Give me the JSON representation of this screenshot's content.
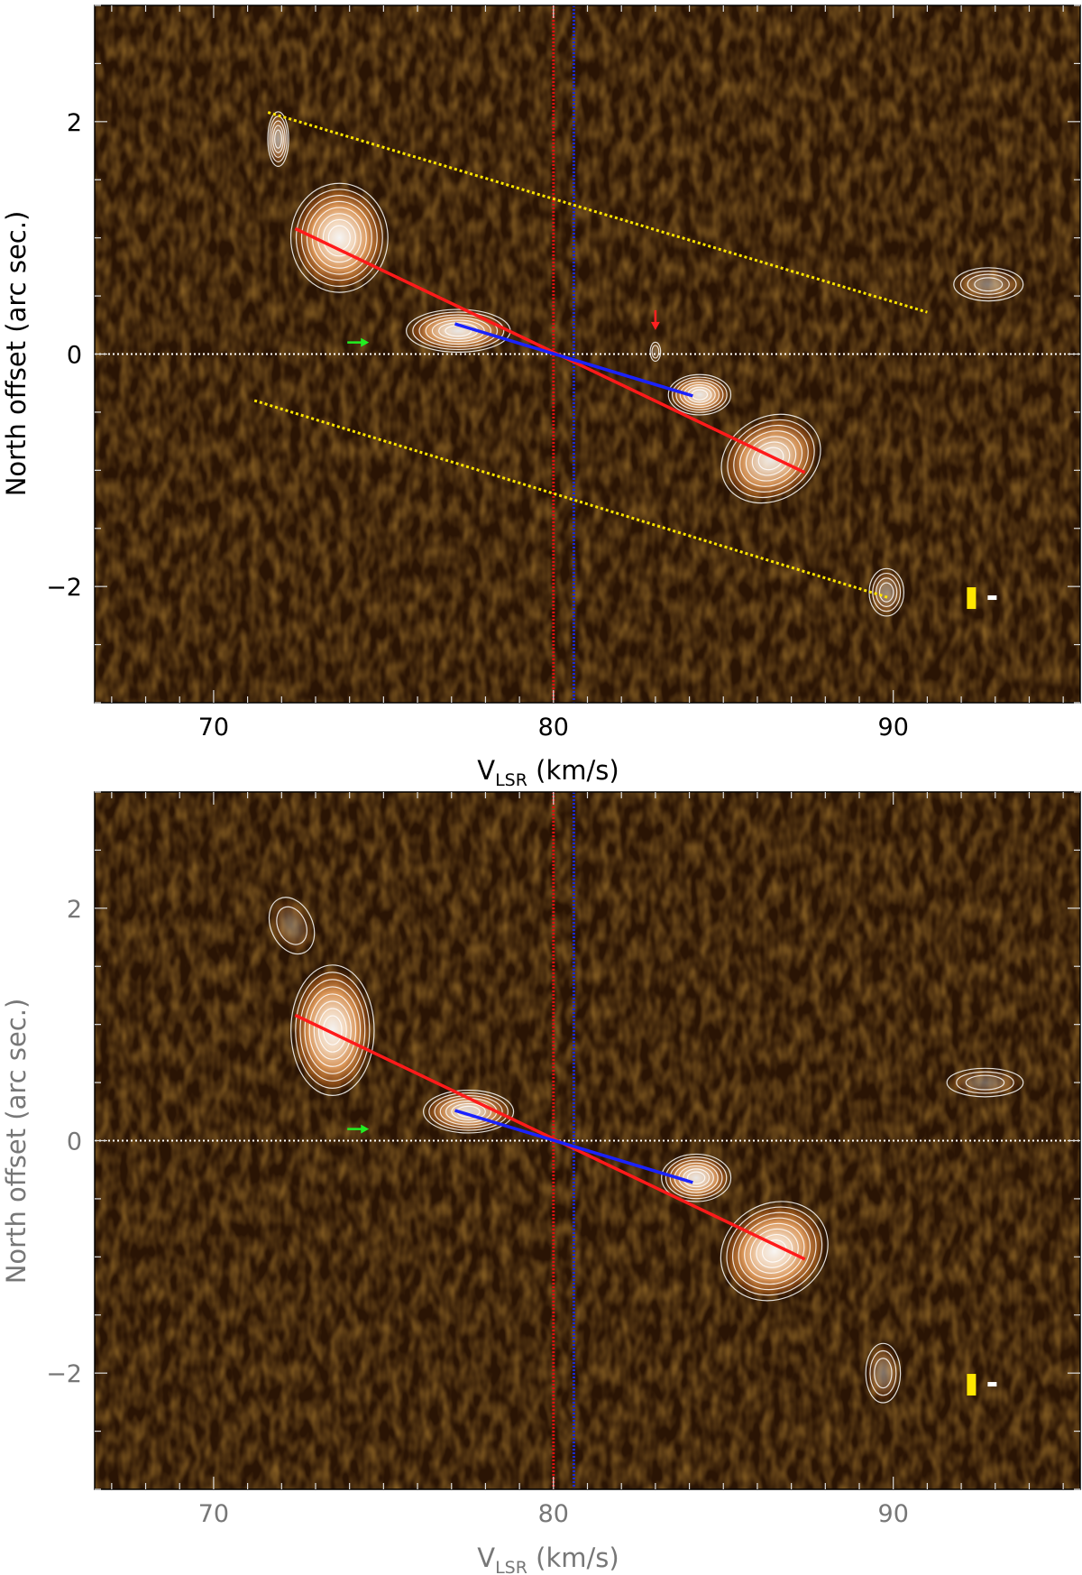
{
  "chart_data": [
    {
      "type": "heatmap",
      "panel": "top",
      "xlabel_main": "V",
      "xlabel_sub": "LSR",
      "xlabel_unit": " (km/s)",
      "ylabel": "North offset (arc sec.)",
      "xlim": [
        66.5,
        95.5
      ],
      "ylim": [
        -3,
        3
      ],
      "xticks": [
        70,
        80,
        90
      ],
      "yticks": [
        2,
        0,
        -2
      ],
      "vlines": [
        {
          "x": 80.0,
          "color": "#e01010",
          "style": "dotted"
        },
        {
          "x": 80.6,
          "color": "#1a2ad8",
          "style": "dotted"
        }
      ],
      "hline": {
        "y": 0,
        "color": "#ffffff",
        "style": "dotted"
      },
      "lines": [
        {
          "color": "#ff1a1a",
          "x": [
            72.4,
            87.4
          ],
          "y": [
            1.08,
            -1.02
          ]
        },
        {
          "color": "#1a22ff",
          "x": [
            77.1,
            84.1
          ],
          "y": [
            0.26,
            -0.36
          ]
        },
        {
          "color": "#ffe600",
          "style": "dotted",
          "x": [
            71.6,
            91.0
          ],
          "y": [
            2.08,
            0.36
          ]
        },
        {
          "color": "#ffe600",
          "style": "dotted",
          "x": [
            71.2,
            89.9
          ],
          "y": [
            -0.4,
            -2.1
          ]
        }
      ],
      "blobs": [
        {
          "x": 73.7,
          "y": 1.0,
          "rx": 1.4,
          "ry": 0.46,
          "rot": 0,
          "peak": 0.95
        },
        {
          "x": 77.2,
          "y": 0.2,
          "rx": 1.5,
          "ry": 0.18,
          "rot": 0,
          "peak": 0.9
        },
        {
          "x": 84.3,
          "y": -0.35,
          "rx": 0.9,
          "ry": 0.17,
          "rot": 0,
          "peak": 0.9
        },
        {
          "x": 86.4,
          "y": -0.9,
          "rx": 1.5,
          "ry": 0.35,
          "rot": -30,
          "peak": 0.9
        },
        {
          "x": 71.9,
          "y": 1.85,
          "rx": 0.3,
          "ry": 0.23,
          "rot": 0,
          "peak": 0.6
        },
        {
          "x": 92.8,
          "y": 0.6,
          "rx": 1.0,
          "ry": 0.14,
          "rot": 0,
          "peak": 0.45
        },
        {
          "x": 89.8,
          "y": -2.05,
          "rx": 0.5,
          "ry": 0.2,
          "rot": 0,
          "peak": 0.45
        },
        {
          "x": 83.0,
          "y": 0.02,
          "rx": 0.15,
          "ry": 0.08,
          "rot": 0,
          "peak": 0.25
        }
      ],
      "arrows": [
        {
          "color": "#22ee22",
          "x": 74.2,
          "y": 0.1,
          "dir": "right"
        },
        {
          "color": "#ff2020",
          "x": 83.0,
          "y": 0.3,
          "dir": "down"
        }
      ],
      "beam_marker": {
        "x": 92.3,
        "y": -2.1,
        "color": "#ffe600"
      }
    },
    {
      "type": "heatmap",
      "panel": "bottom",
      "xlabel_main": "V",
      "xlabel_sub": "LSR",
      "xlabel_unit": " (km/s)",
      "ylabel": "North offset (arc sec.)",
      "xlim": [
        66.5,
        95.5
      ],
      "ylim": [
        -3,
        3
      ],
      "xticks": [
        70,
        80,
        90
      ],
      "yticks": [
        2,
        0,
        -2
      ],
      "vlines": [
        {
          "x": 80.0,
          "color": "#e01010",
          "style": "dotted"
        },
        {
          "x": 80.6,
          "color": "#1a2ad8",
          "style": "dotted"
        }
      ],
      "hline": {
        "y": 0,
        "color": "#ffffff",
        "style": "dotted"
      },
      "lines": [
        {
          "color": "#ff1a1a",
          "x": [
            72.4,
            87.4
          ],
          "y": [
            1.08,
            -1.02
          ]
        },
        {
          "color": "#1a22ff",
          "x": [
            77.1,
            84.1
          ],
          "y": [
            0.26,
            -0.36
          ]
        }
      ],
      "blobs": [
        {
          "x": 73.5,
          "y": 0.95,
          "rx": 1.2,
          "ry": 0.55,
          "rot": 0,
          "peak": 0.95
        },
        {
          "x": 77.5,
          "y": 0.25,
          "rx": 1.3,
          "ry": 0.18,
          "rot": 0,
          "peak": 0.85
        },
        {
          "x": 84.2,
          "y": -0.32,
          "rx": 1.0,
          "ry": 0.2,
          "rot": 0,
          "peak": 0.9
        },
        {
          "x": 86.5,
          "y": -0.95,
          "rx": 1.6,
          "ry": 0.4,
          "rot": -30,
          "peak": 0.95
        },
        {
          "x": 72.3,
          "y": 1.85,
          "rx": 0.6,
          "ry": 0.25,
          "rot": -25,
          "peak": 0.3
        },
        {
          "x": 92.7,
          "y": 0.5,
          "rx": 1.1,
          "ry": 0.12,
          "rot": 0,
          "peak": 0.35
        },
        {
          "x": 89.7,
          "y": -2.0,
          "rx": 0.5,
          "ry": 0.25,
          "rot": 0,
          "peak": 0.4
        }
      ],
      "arrows": [
        {
          "color": "#22ee22",
          "x": 74.2,
          "y": 0.1,
          "dir": "right"
        }
      ],
      "beam_marker": {
        "x": 92.3,
        "y": -2.1,
        "color": "#ffe600"
      }
    }
  ]
}
